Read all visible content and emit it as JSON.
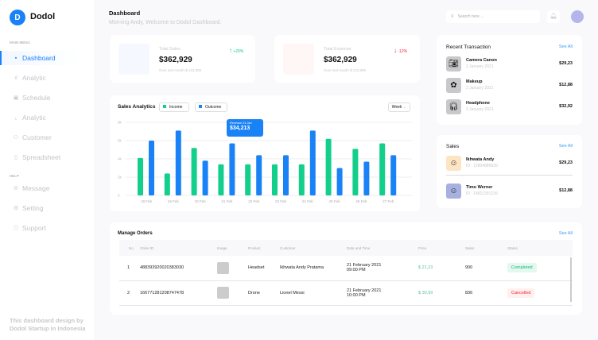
{
  "sidebar": {
    "logo_letter": "D",
    "brand": "Dodol",
    "main_menu_label": "MAIN MENU",
    "help_label": "HELP",
    "main_items": [
      {
        "label": "Dashboard",
        "icon": "grid-icon",
        "active": true
      },
      {
        "label": "Analytic",
        "icon": "bar-chart-icon"
      },
      {
        "label": "Schedule",
        "icon": "calendar-edit-icon"
      },
      {
        "label": "Analytic",
        "icon": "line-chart-icon"
      },
      {
        "label": "Customer",
        "icon": "users-icon"
      },
      {
        "label": "Spreadsheet",
        "icon": "document-icon"
      }
    ],
    "help_items": [
      {
        "label": "Message",
        "icon": "message-icon"
      },
      {
        "label": "Setting",
        "icon": "gear-icon"
      },
      {
        "label": "Support",
        "icon": "info-icon"
      }
    ],
    "footer": "This dashboard design by Dodol Startup in Indonesia"
  },
  "header": {
    "title": "Dashboard",
    "subtitle": "Morning Andy, Welcome to Dodol Dashboard.",
    "search_placeholder": "Search here ..."
  },
  "stats": [
    {
      "label": "Total Sales",
      "value": "$362,929",
      "change": "+20%",
      "sub": "Over last month $ 123,909",
      "color": "#10c98a",
      "bg": "#f5f9ff",
      "dir": "up"
    },
    {
      "label": "Total Expense",
      "value": "$362,929",
      "change": "-12%",
      "sub": "Over last month $ 123,909",
      "color": "#f5222d",
      "bg": "#fff6f6",
      "dir": "down"
    }
  ],
  "chart": {
    "title": "Sales Analytics",
    "period": "Week",
    "tooltip_label": "Revenue 21 Jan",
    "tooltip_value": "$34,213"
  },
  "chart_data": {
    "type": "bar",
    "categories": [
      "18 Feb",
      "19 Feb",
      "20 Feb",
      "21 Feb",
      "22 Feb",
      "23 Feb",
      "24 Feb",
      "25 Feb",
      "26 Feb",
      "27 Feb"
    ],
    "series": [
      {
        "name": "Income",
        "color": "#13cf8c",
        "values": [
          4100,
          2400,
          5200,
          3400,
          3400,
          3400,
          3400,
          6200,
          5100,
          5700
        ]
      },
      {
        "name": "Outcome",
        "color": "#1a82f7",
        "values": [
          6000,
          7100,
          3800,
          5700,
          4400,
          4400,
          7100,
          3000,
          3700,
          4400
        ]
      }
    ],
    "yticks": [
      "0",
      "2k",
      "4k",
      "6k",
      "8k"
    ],
    "ylim": [
      0,
      8000
    ],
    "grid": true,
    "legend": "top-left"
  },
  "recent": {
    "title": "Recent Transaction",
    "see_all": "See All",
    "items": [
      {
        "name": "Camera Canon",
        "date": "2 January 2021",
        "amount": "$29,23",
        "icon": "camera-icon"
      },
      {
        "name": "Makeup",
        "date": "2 January 2021",
        "amount": "$12,88",
        "icon": "makeup-icon"
      },
      {
        "name": "Headphone",
        "date": "3 January 2021",
        "amount": "$32,92",
        "icon": "headphone-icon"
      }
    ]
  },
  "sales": {
    "title": "Sales",
    "see_all": "See All",
    "items": [
      {
        "name": "Ikhwata Andy",
        "id": "ID : 12804889939",
        "amount": "$29,23",
        "bg": "#fde5c4"
      },
      {
        "name": "Timo Werner",
        "id": "ID : 14812391239",
        "amount": "$12,88",
        "bg": "#a8b0e0"
      }
    ]
  },
  "orders": {
    "title": "Manage Orders",
    "see_all": "See All",
    "columns": [
      "No",
      "Order ID",
      "Image",
      "Product",
      "Customer",
      "Date and Time",
      "Price",
      "Sales",
      "Status"
    ],
    "rows": [
      {
        "no": "1",
        "id": "488393920020383030",
        "product": "Headset",
        "customer": "Ikhwata Andy Pratama",
        "date": "21 February 2021",
        "time": "09:00 PM",
        "price": "$ 21,23",
        "sales": "900",
        "status": "Completed",
        "status_color": "#10b981",
        "status_bg": "#e4f8ef"
      },
      {
        "no": "2",
        "id": "166771281208747478",
        "product": "Drone",
        "customer": "Lionel Messi",
        "date": "21 February 2021",
        "time": "10:00 PM",
        "price": "$ 30,99",
        "sales": "836",
        "status": "Cancelled",
        "status_color": "#f5222d",
        "status_bg": "#fff0f0"
      }
    ]
  }
}
